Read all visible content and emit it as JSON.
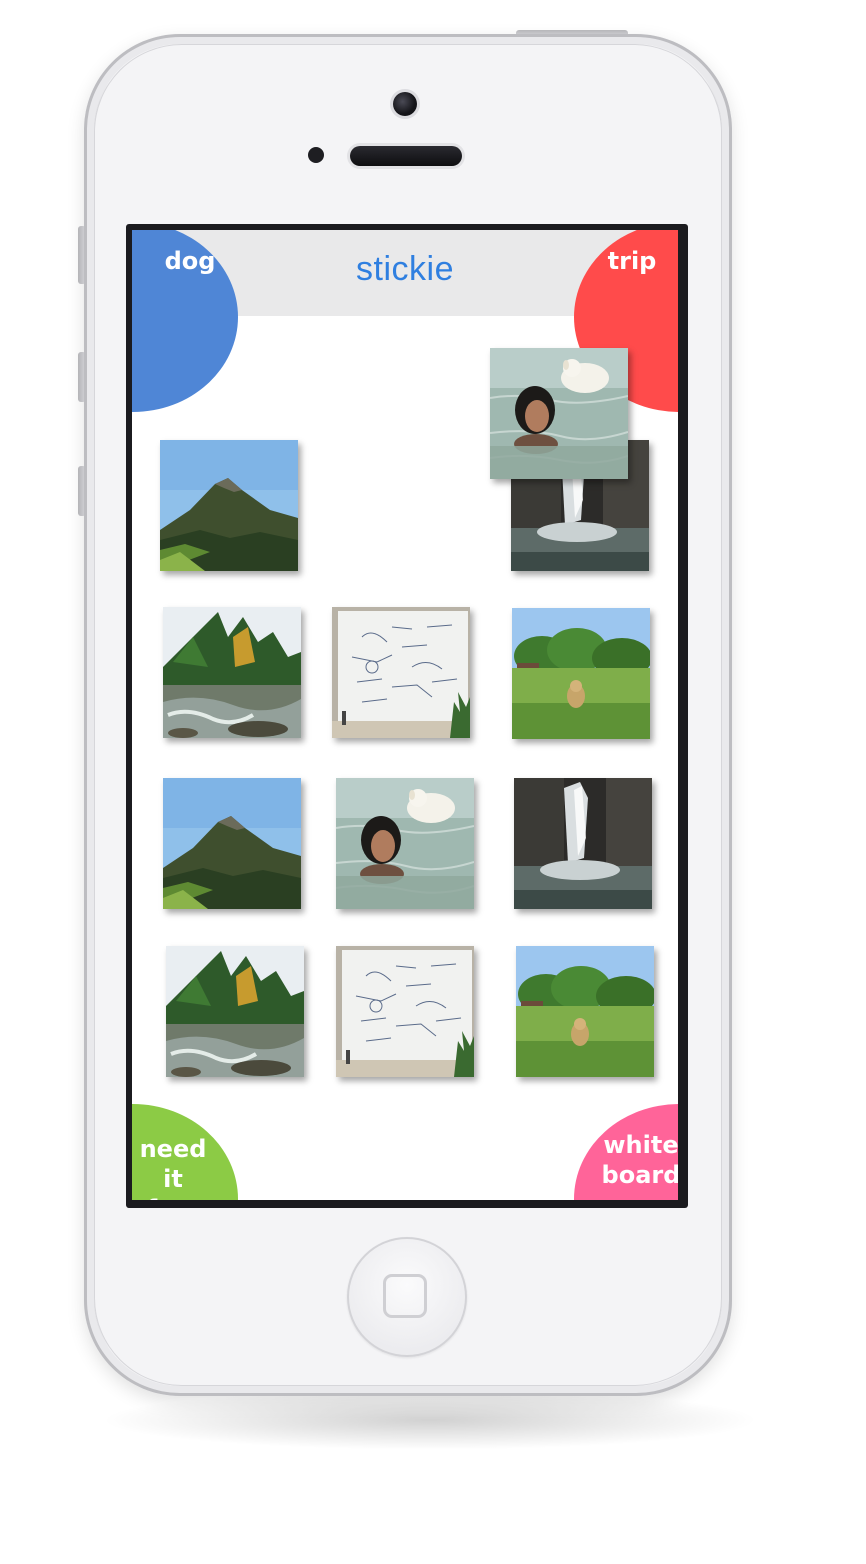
{
  "app": {
    "title": "stickie",
    "title_color": "#2f7fe0",
    "header_bg": "#e9e9ea",
    "logo_colors": [
      "#5a8fdc",
      "#f0484b",
      "#8ccb45",
      "#ff5e9a"
    ]
  },
  "icons": {
    "search": "search-icon",
    "logo": "stickie-logo-icon"
  },
  "corners": {
    "top_left": {
      "label": "dog",
      "color": "#4f86d6"
    },
    "top_right": {
      "label": "trip",
      "color": "#ff4b4b"
    },
    "bottom_left": {
      "label_line1": "need it",
      "label_line2": "fast",
      "color": "#8ccb45"
    },
    "bottom_right": {
      "label_line1": "white",
      "label_line2": "board",
      "color": "#ff6499"
    }
  },
  "photos": [
    {
      "name": "photo-mountain",
      "subject": "mountain"
    },
    {
      "name": "photo-waterfall",
      "subject": "waterfall"
    },
    {
      "name": "photo-river-trees",
      "subject": "river"
    },
    {
      "name": "photo-whiteboard",
      "subject": "whiteboard"
    },
    {
      "name": "photo-dog-meadow",
      "subject": "meadow"
    },
    {
      "name": "photo-mountain",
      "subject": "mountain"
    },
    {
      "name": "photo-woman-dog-swimming",
      "subject": "swim"
    },
    {
      "name": "photo-waterfall",
      "subject": "waterfall"
    },
    {
      "name": "photo-river-trees",
      "subject": "river"
    },
    {
      "name": "photo-whiteboard",
      "subject": "whiteboard"
    },
    {
      "name": "photo-dog-meadow",
      "subject": "meadow"
    }
  ],
  "dragging_photo": {
    "name": "photo-woman-dog-swimming-dragging",
    "subject": "swim"
  }
}
